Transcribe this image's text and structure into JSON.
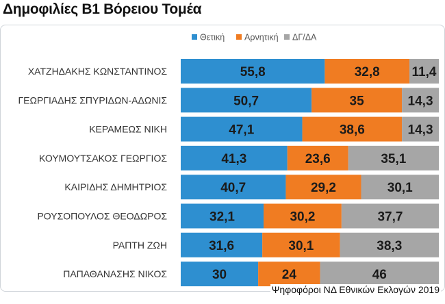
{
  "page": {
    "title": "Δημοφιλίες Β1 Βόρειου Τομέα",
    "source": "Ψηφοφόροι ΝΔ Εθνικών Εκλογών 2019"
  },
  "chart_data": {
    "type": "bar",
    "orientation": "horizontal",
    "stacked": true,
    "title": "",
    "xlabel": "",
    "ylabel": "",
    "legend_position": "top",
    "grid": false,
    "xlim": [
      0,
      100
    ],
    "categories": [
      "ΧΑΤΖΗΔΑΚΗΣ ΚΩΝΣΤΑΝΤΙΝΟΣ",
      "ΓΕΩΡΓΙΑΔΗΣ ΣΠΥΡΙΔΩΝ-ΑΔΩΝΙΣ",
      "ΚΕΡΑΜΕΩΣ ΝΙΚΗ",
      "ΚΟΥΜΟΥΤΣΑΚΟΣ ΓΕΩΡΓΙΟΣ",
      "ΚΑΙΡΙΔΗΣ ΔΗΜΗΤΡΙΟΣ",
      "ΡΟΥΣΟΠΟΥΛΟΣ ΘΕΟΔΩΡΟΣ",
      "ΡΑΠΤΗ ΖΩΗ",
      "ΠΑΠΑΘΑΝΑΣΗΣ ΝΙΚΟΣ"
    ],
    "series": [
      {
        "name": "Θετική",
        "color": "#2e8fd0",
        "values": [
          55.8,
          50.7,
          47.1,
          41.3,
          40.7,
          32.1,
          31.6,
          30
        ]
      },
      {
        "name": "Αρνητική",
        "color": "#f07c22",
        "values": [
          32.8,
          35,
          38.6,
          23.6,
          29.2,
          30.2,
          30.1,
          24
        ]
      },
      {
        "name": "ΔΓ/ΔΑ",
        "color": "#a6a6a6",
        "values": [
          11.4,
          14.3,
          14.3,
          35.1,
          30.1,
          37.7,
          38.3,
          46
        ]
      }
    ],
    "data_labels": [
      [
        "55,8",
        "32,8",
        "11,4"
      ],
      [
        "50,7",
        "35",
        "14,3"
      ],
      [
        "47,1",
        "38,6",
        "14,3"
      ],
      [
        "41,3",
        "23,6",
        "35,1"
      ],
      [
        "40,7",
        "29,2",
        "30,1"
      ],
      [
        "32,1",
        "30,2",
        "37,7"
      ],
      [
        "31,6",
        "30,1",
        "38,3"
      ],
      [
        "30",
        "24",
        "46"
      ]
    ]
  }
}
